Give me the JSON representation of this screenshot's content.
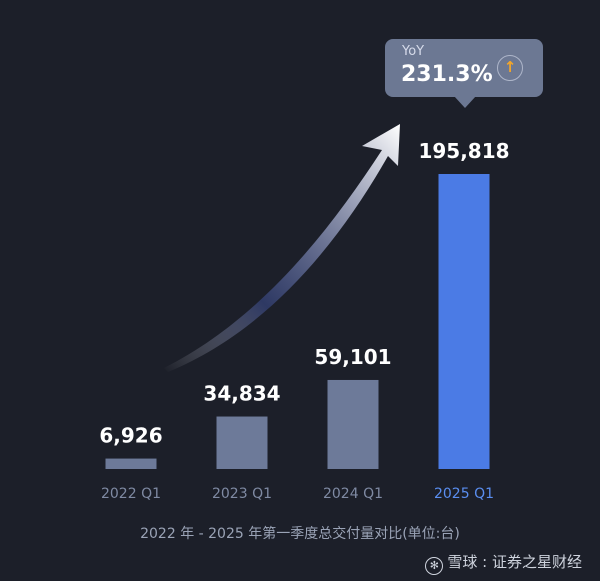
{
  "chart_data": {
    "type": "bar",
    "categories": [
      "2022 Q1",
      "2023 Q1",
      "2024 Q1",
      "2025 Q1"
    ],
    "values": [
      6926,
      34834,
      59101,
      195818
    ],
    "value_labels": [
      "6,926",
      "34,834",
      "59,101",
      "195,818"
    ],
    "highlight_index": 3,
    "ylim": [
      0,
      200000
    ],
    "grid": false,
    "legend": "none",
    "colors": {
      "bar": "#6d7a99",
      "bar_highlight": "#4b7be5",
      "label": "#ffffff",
      "tick": "#7f8aa3",
      "tick_highlight": "#5a8ef0",
      "arrow": "#ffffff"
    },
    "annotation": {
      "label": "YoY",
      "value": "231.3%",
      "icon": "up-arrow-icon"
    },
    "caption": "2022 年 - 2025 年第一季度总交付量对比(单位:台)"
  },
  "watermark": {
    "logo_icon": "snowball-logo-icon",
    "text": "雪球 : 证券之星财经"
  }
}
